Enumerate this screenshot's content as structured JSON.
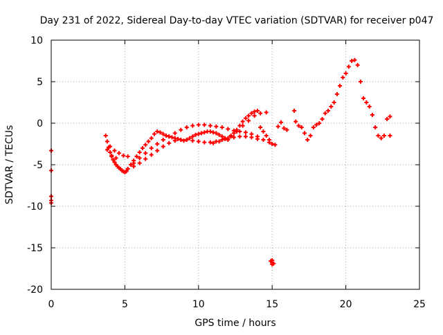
{
  "chart_data": {
    "type": "scatter",
    "title": "Day 231 of 2022, Sidereal Day-to-day VTEC variation (SDTVAR) for receiver p047",
    "xlabel": "GPS time / hours",
    "ylabel": "SDTVAR / TECUs",
    "xlim": [
      0,
      25
    ],
    "ylim": [
      -20,
      10
    ],
    "xticks": [
      0,
      5,
      10,
      15,
      20,
      25
    ],
    "yticks": [
      -20,
      -15,
      -10,
      -5,
      0,
      5,
      10
    ],
    "grid": true,
    "marker": "+",
    "colors": {
      "series": "#ff0000",
      "grid": "#a0a0a0",
      "axis": "#000000"
    },
    "series": [
      {
        "name": "SDTVAR",
        "x": [
          0.0,
          0.0,
          0.0,
          0.0,
          0.0,
          3.7,
          3.8,
          3.9,
          4.0,
          4.1,
          4.2,
          4.3,
          4.4,
          4.5,
          4.6,
          4.7,
          4.8,
          4.9,
          5.0,
          5.1,
          5.2,
          5.4,
          5.6,
          5.8,
          6.0,
          6.2,
          6.4,
          6.6,
          6.8,
          7.0,
          7.2,
          7.4,
          7.6,
          7.8,
          8.0,
          8.2,
          8.4,
          8.6,
          8.8,
          9.0,
          9.2,
          9.4,
          9.6,
          9.8,
          10.0,
          10.2,
          10.4,
          10.6,
          10.8,
          11.0,
          11.2,
          11.4,
          11.6,
          11.8,
          12.0,
          12.2,
          12.4,
          12.6,
          12.8,
          13.0,
          13.2,
          13.4,
          13.6,
          13.8,
          14.0,
          14.2,
          14.4,
          14.6,
          14.8,
          15.0,
          15.2,
          15.4,
          15.6,
          15.8,
          16.0,
          16.5,
          16.6,
          16.8,
          17.0,
          17.2,
          17.4,
          17.6,
          17.8,
          18.0,
          18.2,
          18.4,
          18.6,
          18.8,
          19.0,
          19.2,
          19.4,
          19.6,
          19.8,
          20.0,
          20.2,
          20.4,
          20.6,
          20.8,
          21.0,
          21.2,
          21.4,
          21.6,
          21.8,
          22.0,
          22.2,
          22.4,
          22.6,
          22.8,
          23.0,
          23.0,
          5.6,
          6.0,
          6.4,
          6.8,
          7.2,
          7.6,
          8.0,
          8.4,
          8.8,
          9.2,
          9.6,
          10.0,
          10.4,
          10.8,
          11.2,
          11.6,
          12.0,
          12.4,
          12.8,
          13.2,
          13.6,
          14.0,
          14.4,
          14.8,
          11.0,
          11.4,
          11.8,
          12.2,
          12.6,
          13.0,
          13.4,
          13.8,
          14.2,
          14.6,
          15.0,
          15.0,
          15.0,
          14.9,
          15.1,
          5.2,
          5.6,
          6.0,
          6.4,
          6.8,
          7.2,
          7.6,
          8.0,
          8.4,
          8.8,
          9.2,
          9.6,
          10.0,
          10.4,
          10.8,
          11.2,
          11.6,
          12.0,
          12.4,
          12.8,
          13.2,
          13.6,
          14.0,
          4.0,
          4.3,
          4.6,
          4.9,
          5.2,
          3.8,
          4.1,
          4.4
        ],
        "y": [
          -3.3,
          -5.7,
          -8.8,
          -9.3,
          -9.6,
          -1.5,
          -2.2,
          -2.9,
          -3.5,
          -4.0,
          -4.4,
          -4.7,
          -5.0,
          -5.2,
          -5.4,
          -5.5,
          -5.7,
          -5.8,
          -5.9,
          -5.8,
          -5.5,
          -5.0,
          -4.5,
          -4.0,
          -3.5,
          -3.0,
          -2.6,
          -2.2,
          -1.8,
          -1.3,
          -1.0,
          -1.1,
          -1.3,
          -1.5,
          -1.6,
          -1.7,
          -1.8,
          -1.9,
          -2.0,
          -2.1,
          -2.0,
          -1.8,
          -1.6,
          -1.4,
          -1.3,
          -1.2,
          -1.1,
          -1.0,
          -1.0,
          -1.1,
          -1.2,
          -1.4,
          -1.6,
          -1.8,
          -2.0,
          -1.6,
          -1.2,
          -0.8,
          -0.3,
          0.2,
          0.6,
          0.9,
          1.2,
          1.4,
          1.5,
          -0.5,
          -1.0,
          -1.5,
          -2.0,
          -2.5,
          -2.6,
          -0.4,
          0.1,
          -0.6,
          -0.8,
          1.5,
          0.2,
          -0.3,
          -0.5,
          -1.2,
          -2.0,
          -1.5,
          -0.5,
          -0.2,
          0.0,
          0.5,
          1.2,
          1.5,
          2.0,
          2.5,
          3.5,
          4.5,
          5.5,
          6.0,
          6.8,
          7.5,
          7.6,
          7.0,
          5.0,
          3.0,
          2.5,
          2.0,
          1.0,
          -0.5,
          -1.5,
          -1.8,
          -1.5,
          0.5,
          0.8,
          -1.5,
          -4.8,
          -4.2,
          -3.6,
          -3.0,
          -2.5,
          -2.0,
          -1.6,
          -1.2,
          -0.8,
          -0.5,
          -0.3,
          -0.2,
          -0.2,
          -0.3,
          -0.4,
          -0.5,
          -0.7,
          -0.9,
          -1.0,
          -1.1,
          -1.3,
          -1.6,
          -2.0,
          -2.3,
          -2.4,
          -2.2,
          -1.9,
          -1.5,
          -1.0,
          -0.3,
          0.3,
          0.9,
          1.2,
          1.3,
          -16.5,
          -16.8,
          -17.0,
          -16.6,
          -16.9,
          -5.5,
          -5.2,
          -4.8,
          -4.3,
          -3.8,
          -3.3,
          -2.8,
          -2.4,
          -2.1,
          -2.0,
          -2.0,
          -2.1,
          -2.2,
          -2.3,
          -2.3,
          -2.2,
          -2.0,
          -1.8,
          -1.7,
          -1.6,
          -1.6,
          -1.7,
          -1.9,
          -2.8,
          -3.3,
          -3.6,
          -3.9,
          -4.0,
          -3.2,
          -3.9,
          -4.2
        ]
      }
    ]
  }
}
